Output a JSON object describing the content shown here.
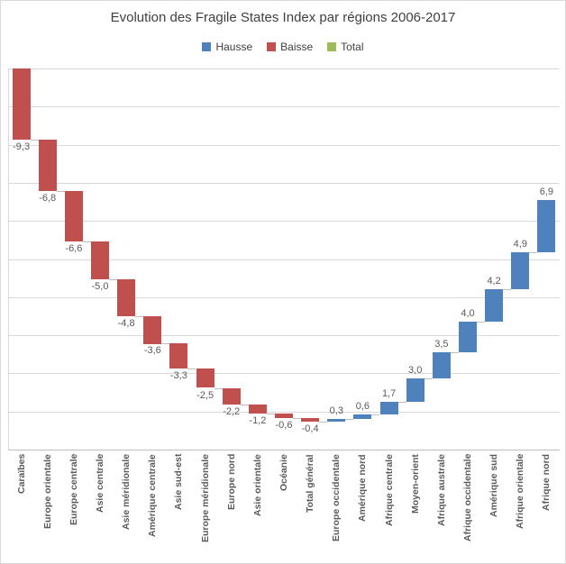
{
  "title": "Evolution des Fragile States Index par régions 2006-2017",
  "legend": {
    "items": [
      {
        "label": "Hausse",
        "color": "#4F81BD"
      },
      {
        "label": "Baisse",
        "color": "#C0504D"
      },
      {
        "label": "Total",
        "color": "#9BBB59"
      }
    ]
  },
  "colors": {
    "hausse": "#4F81BD",
    "baisse": "#C0504D",
    "total": "#9BBB59",
    "gridline": "#D9D9D9",
    "axis_line": "#BFBFBF",
    "connector": "#BFBFBF",
    "value_label": "#595959",
    "category_label": "#595959",
    "title_text": "#404040",
    "border": "#D9D9D9",
    "background": "#FFFFFF"
  },
  "chart_data": {
    "type": "waterfall",
    "title": "Evolution des Fragile States Index par régions 2006-2017",
    "start_value": 0,
    "ylim": [
      -50,
      0
    ],
    "gridline_step": 5,
    "grid": true,
    "y_axis_labels_visible": false,
    "legend_position": "top",
    "decimal_separator": ",",
    "points": [
      {
        "category": "Caraïbes",
        "value": -9.3,
        "label": "-9,3",
        "type": "baisse"
      },
      {
        "category": "Europe orientale",
        "value": -6.8,
        "label": "-6,8",
        "type": "baisse"
      },
      {
        "category": "Europe centrale",
        "value": -6.6,
        "label": "-6,6",
        "type": "baisse"
      },
      {
        "category": "Asie centrale",
        "value": -5.0,
        "label": "-5,0",
        "type": "baisse"
      },
      {
        "category": "Asie méridionale",
        "value": -4.8,
        "label": "-4,8",
        "type": "baisse"
      },
      {
        "category": "Amérique centrale",
        "value": -3.6,
        "label": "-3,6",
        "type": "baisse"
      },
      {
        "category": "Asie sud-est",
        "value": -3.3,
        "label": "-3,3",
        "type": "baisse"
      },
      {
        "category": "Europe méridionale",
        "value": -2.5,
        "label": "-2,5",
        "type": "baisse"
      },
      {
        "category": "Europe nord",
        "value": -2.2,
        "label": "-2,2",
        "type": "baisse"
      },
      {
        "category": "Asie orientale",
        "value": -1.2,
        "label": "-1,2",
        "type": "baisse"
      },
      {
        "category": "Océanie",
        "value": -0.6,
        "label": "-0,6",
        "type": "baisse"
      },
      {
        "category": "Total général",
        "value": -0.4,
        "label": "-0,4",
        "type": "baisse"
      },
      {
        "category": "Europe occidentale",
        "value": 0.3,
        "label": "0,3",
        "type": "hausse"
      },
      {
        "category": "Amérique nord",
        "value": 0.6,
        "label": "0,6",
        "type": "hausse"
      },
      {
        "category": "Afrique centrale",
        "value": 1.7,
        "label": "1,7",
        "type": "hausse"
      },
      {
        "category": "Moyen-orient",
        "value": 3.0,
        "label": "3,0",
        "type": "hausse"
      },
      {
        "category": "Afrique australe",
        "value": 3.5,
        "label": "3,5",
        "type": "hausse"
      },
      {
        "category": "Afrique occidentale",
        "value": 4.0,
        "label": "4,0",
        "type": "hausse"
      },
      {
        "category": "Amérique sud",
        "value": 4.2,
        "label": "4,2",
        "type": "hausse"
      },
      {
        "category": "Afrique orientale",
        "value": 4.9,
        "label": "4,9",
        "type": "hausse"
      },
      {
        "category": "Afrique nord",
        "value": 6.9,
        "label": "6,9",
        "type": "hausse"
      }
    ]
  }
}
